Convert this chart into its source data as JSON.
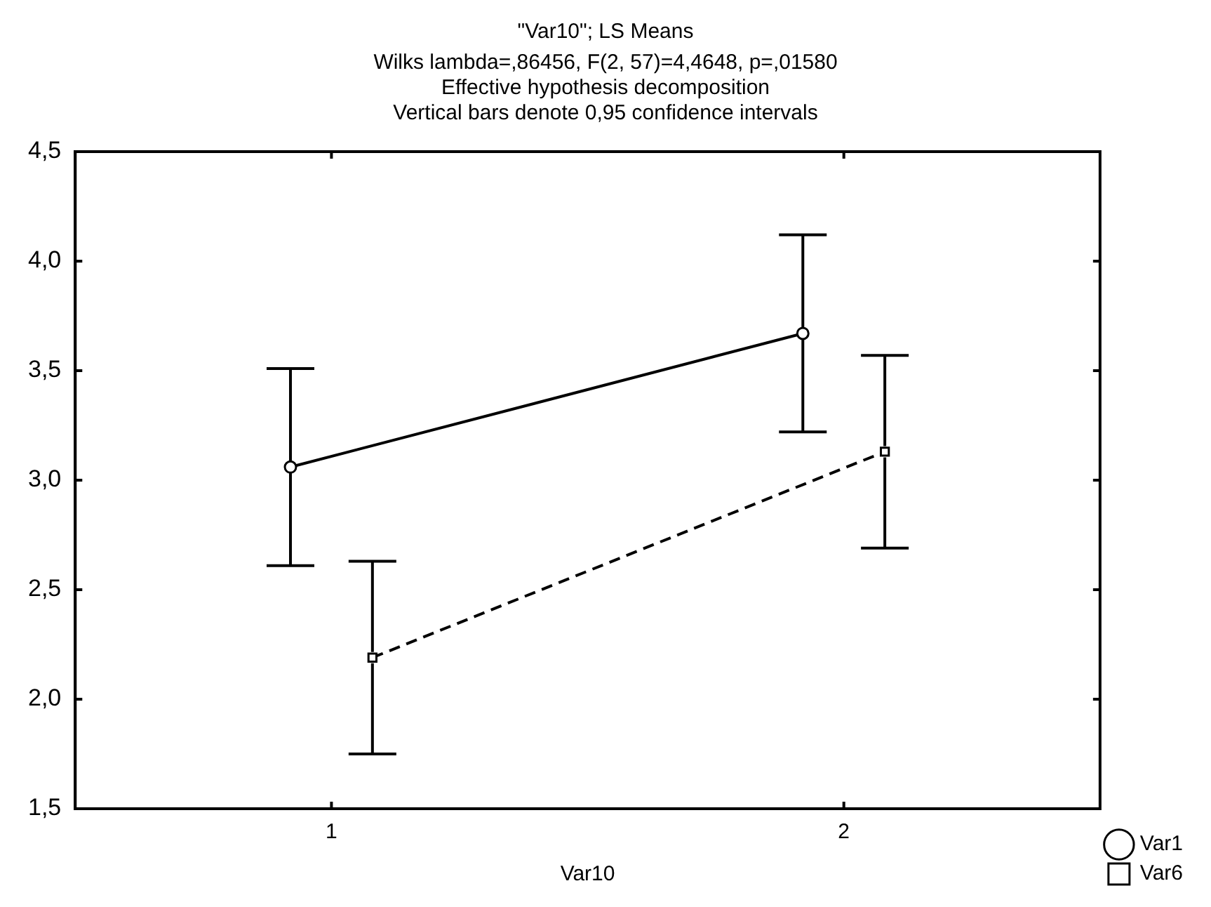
{
  "chart_data": {
    "type": "line",
    "title": "\"Var10\"; LS Means",
    "subtitle": "Wilks lambda=,86456, F(2, 57)=4,4648, p=,01580\nEffective hypothesis decomposition\nVertical bars denote 0,95 confidence intervals",
    "xlabel": "Var10",
    "xlim": [
      0.5,
      2.5
    ],
    "xticks": [
      1,
      2
    ],
    "ylim": [
      1.5,
      4.5
    ],
    "yticks": [
      {
        "value": 1.5,
        "label": "1,5"
      },
      {
        "value": 2,
        "label": "2,0"
      },
      {
        "value": 2.5,
        "label": "2,5"
      },
      {
        "value": 3,
        "label": "3,0"
      },
      {
        "value": 3.5,
        "label": "3,5"
      },
      {
        "value": 4,
        "label": "4,0"
      },
      {
        "value": 4.5,
        "label": "4,5"
      }
    ],
    "grid": false,
    "legend": "bottom right",
    "series": [
      {
        "name": "Var1",
        "color": "#000000",
        "x": [
          0.92,
          1.92
        ],
        "values": [
          3.06,
          3.67
        ],
        "errors": [
          0.45,
          0.45
        ],
        "marker": "circle",
        "line_style": "solid"
      },
      {
        "name": "Var6",
        "color": "#000000",
        "x": [
          1.08,
          2.08
        ],
        "values": [
          2.19,
          3.13
        ],
        "errors": [
          0.44,
          0.44
        ],
        "marker": "square",
        "line_style": "dashed"
      }
    ]
  }
}
